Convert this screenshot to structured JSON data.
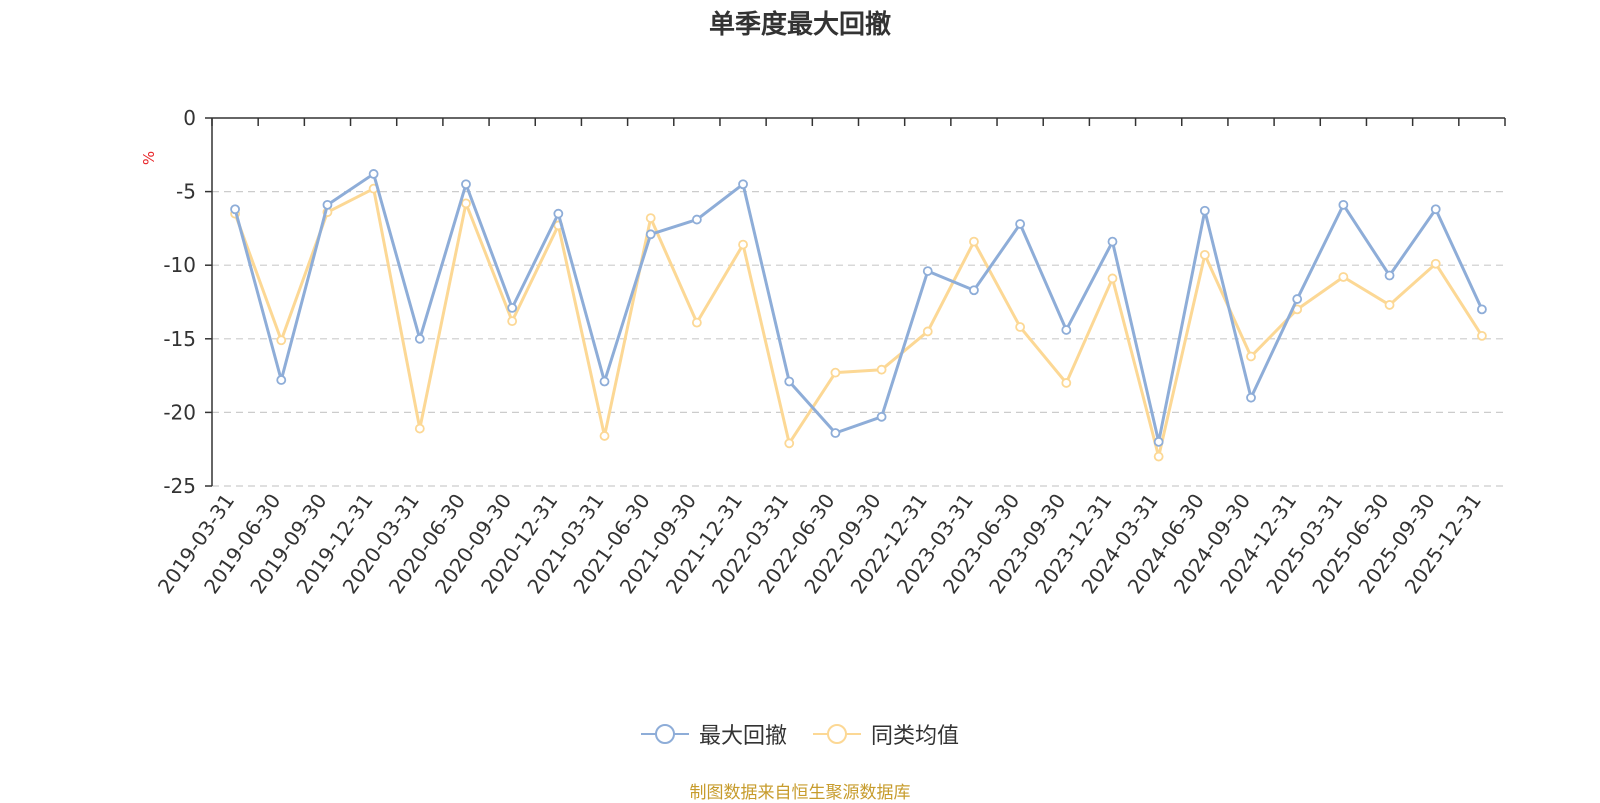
{
  "chart_data": {
    "type": "line",
    "title": "单季度最大回撤",
    "ylabel": "%",
    "ylim": [
      -25,
      0
    ],
    "yticks": [
      0,
      -5,
      -10,
      -15,
      -20,
      -25
    ],
    "grid": true,
    "legend_position": "bottom-center",
    "categories": [
      "2019-03-31",
      "2019-06-30",
      "2019-09-30",
      "2019-12-31",
      "2020-03-31",
      "2020-06-30",
      "2020-09-30",
      "2020-12-31",
      "2021-03-31",
      "2021-06-30",
      "2021-09-30",
      "2021-12-31",
      "2022-03-31",
      "2022-06-30",
      "2022-09-30",
      "2022-12-31",
      "2023-03-31",
      "2023-06-30",
      "2023-09-30",
      "2023-12-31",
      "2024-03-31",
      "2024-06-30",
      "2024-09-30",
      "2024-12-31",
      "2025-03-31",
      "2025-06-30",
      "2025-09-30",
      "2025-12-31"
    ],
    "series": [
      {
        "name": "最大回撤",
        "color": "#8eadd8",
        "values": [
          -6.2,
          -17.8,
          -5.9,
          -3.8,
          -15.0,
          -4.5,
          -12.9,
          -6.5,
          -17.9,
          -7.9,
          -6.9,
          -4.5,
          -17.9,
          -21.4,
          -20.3,
          -10.4,
          -11.7,
          -7.2,
          -14.4,
          -8.4,
          -22.0,
          -6.3,
          -19.0,
          -12.3,
          -5.9,
          -10.7,
          -6.2,
          -13.0
        ]
      },
      {
        "name": "同类均值",
        "color": "#fcd895",
        "values": [
          -6.5,
          -15.1,
          -6.4,
          -4.8,
          -21.1,
          -5.8,
          -13.8,
          -7.3,
          -21.6,
          -6.8,
          -13.9,
          -8.6,
          -22.1,
          -17.3,
          -17.1,
          -14.5,
          -8.4,
          -14.2,
          -18.0,
          -10.9,
          -23.0,
          -9.3,
          -16.2,
          -13.0,
          -10.8,
          -12.7,
          -9.9,
          -14.8
        ]
      }
    ]
  },
  "source_note": "制图数据来自恒生聚源数据库"
}
